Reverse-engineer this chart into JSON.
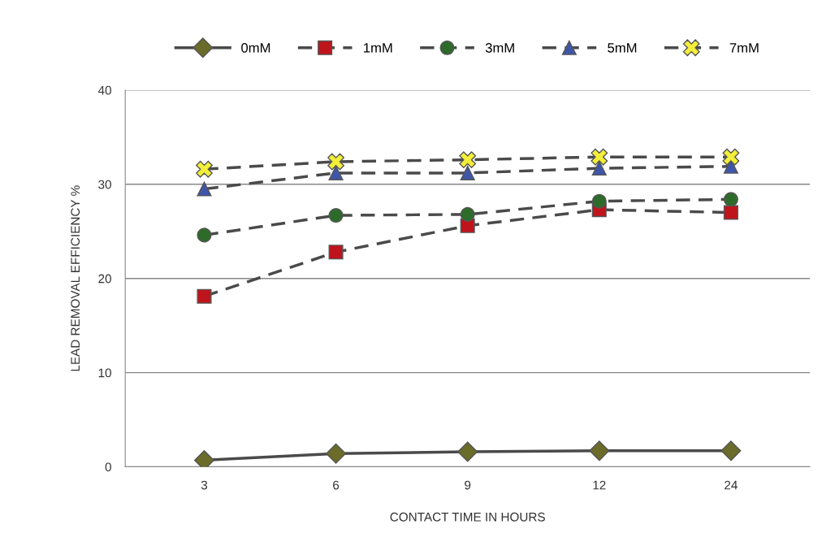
{
  "chart_data": {
    "type": "line",
    "xlabel": "CONTACT TIME IN HOURS",
    "ylabel": "LEAD REMOVAL EFFICIENCY %",
    "categories": [
      "3",
      "6",
      "9",
      "12",
      "24"
    ],
    "series": [
      {
        "name": "0mM",
        "color": "#6b6b2a",
        "marker": "diamond",
        "line_style": "solid",
        "values": [
          0.7,
          1.4,
          1.6,
          1.7,
          1.7
        ]
      },
      {
        "name": "1mM",
        "color": "#c0141c",
        "marker": "square",
        "line_style": "dashed",
        "values": [
          18.1,
          22.8,
          25.6,
          27.3,
          27.0
        ]
      },
      {
        "name": "3mM",
        "color": "#2e6b2a",
        "marker": "circle",
        "line_style": "dashed",
        "values": [
          24.6,
          26.7,
          26.8,
          28.2,
          28.4
        ]
      },
      {
        "name": "5mM",
        "color": "#3f56a8",
        "marker": "triangle",
        "line_style": "dashed",
        "values": [
          29.5,
          31.2,
          31.2,
          31.7,
          31.9
        ]
      },
      {
        "name": "7mM",
        "color": "#f2ee3a",
        "marker": "cross",
        "line_style": "dashed",
        "values": [
          31.6,
          32.4,
          32.6,
          32.9,
          32.9
        ]
      }
    ],
    "ylim": [
      0,
      40
    ],
    "yticks": [
      0,
      10,
      20,
      30,
      40
    ],
    "grid": "y",
    "legend": "top"
  }
}
